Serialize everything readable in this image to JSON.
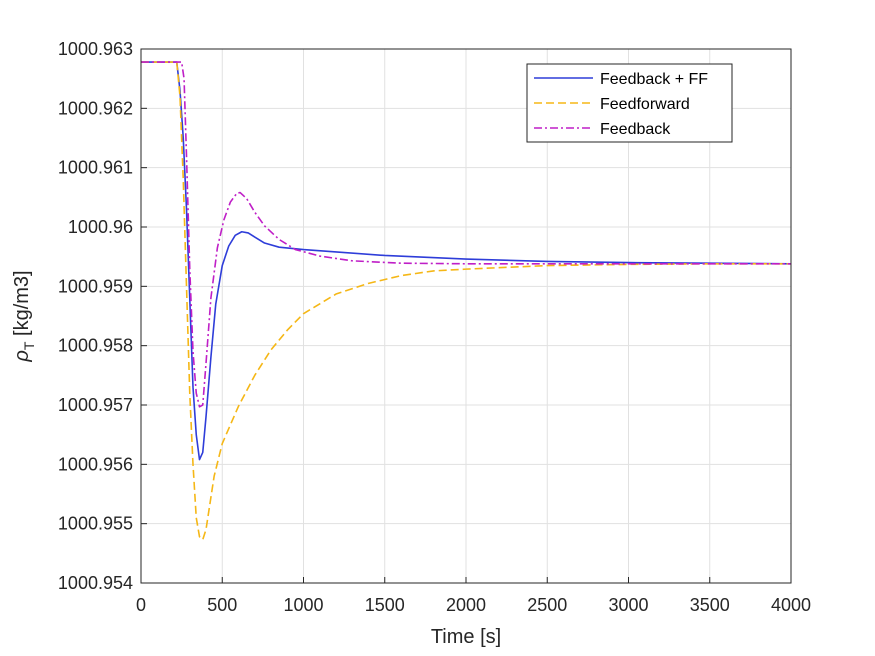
{
  "chart_data": {
    "type": "line",
    "xlabel": "Time [s]",
    "ylabel_main": "ρ",
    "ylabel_sub": "T",
    "ylabel_unit": " [kg/m3]",
    "xlim": [
      0,
      4000
    ],
    "ylim": [
      1000.954,
      1000.963
    ],
    "xticks": [
      0,
      500,
      1000,
      1500,
      2000,
      2500,
      3000,
      3500,
      4000
    ],
    "yticks": [
      1000.954,
      1000.955,
      1000.956,
      1000.957,
      1000.958,
      1000.959,
      1000.96,
      1000.961,
      1000.962,
      1000.963
    ],
    "xtick_labels": [
      "0",
      "500",
      "1000",
      "1500",
      "2000",
      "2500",
      "3000",
      "3500",
      "4000"
    ],
    "ytick_labels": [
      "1000.954",
      "1000.955",
      "1000.956",
      "1000.957",
      "1000.958",
      "1000.959",
      "1000.96",
      "1000.961",
      "1000.962",
      "1000.963"
    ],
    "grid": true,
    "legend_position": "top-right",
    "series": [
      {
        "name": "Feedback + FF",
        "color": "#2E3DD9",
        "style": "solid",
        "points": [
          [
            0,
            1000.96278
          ],
          [
            220,
            1000.96278
          ],
          [
            240,
            1000.9623
          ],
          [
            260,
            1000.9615
          ],
          [
            280,
            1000.9603
          ],
          [
            300,
            1000.9588
          ],
          [
            320,
            1000.9573
          ],
          [
            340,
            1000.9565
          ],
          [
            360,
            1000.95608
          ],
          [
            380,
            1000.9562
          ],
          [
            400,
            1000.9568
          ],
          [
            430,
            1000.9578
          ],
          [
            460,
            1000.9587
          ],
          [
            500,
            1000.95935
          ],
          [
            540,
            1000.95968
          ],
          [
            580,
            1000.95986
          ],
          [
            620,
            1000.95992
          ],
          [
            660,
            1000.9599
          ],
          [
            700,
            1000.95983
          ],
          [
            760,
            1000.95973
          ],
          [
            850,
            1000.95966
          ],
          [
            1000,
            1000.95962
          ],
          [
            1200,
            1000.95958
          ],
          [
            1500,
            1000.95952
          ],
          [
            2000,
            1000.95946
          ],
          [
            2500,
            1000.95942
          ],
          [
            3000,
            1000.9594
          ],
          [
            3500,
            1000.95939
          ],
          [
            4000,
            1000.95938
          ]
        ]
      },
      {
        "name": "Feedforward",
        "color": "#F5B716",
        "style": "dashed",
        "points": [
          [
            0,
            1000.96278
          ],
          [
            220,
            1000.96278
          ],
          [
            240,
            1000.9622
          ],
          [
            260,
            1000.9608
          ],
          [
            280,
            1000.959
          ],
          [
            300,
            1000.9572
          ],
          [
            320,
            1000.956
          ],
          [
            340,
            1000.9551
          ],
          [
            360,
            1000.95478
          ],
          [
            380,
            1000.95473
          ],
          [
            400,
            1000.9549
          ],
          [
            450,
            1000.9558
          ],
          [
            500,
            1000.95635
          ],
          [
            600,
            1000.95698
          ],
          [
            700,
            1000.9575
          ],
          [
            800,
            1000.95793
          ],
          [
            900,
            1000.95826
          ],
          [
            1000,
            1000.95854
          ],
          [
            1200,
            1000.95887
          ],
          [
            1400,
            1000.95905
          ],
          [
            1600,
            1000.95918
          ],
          [
            1800,
            1000.95926
          ],
          [
            2000,
            1000.95929
          ],
          [
            2500,
            1000.95935
          ],
          [
            3000,
            1000.95937
          ],
          [
            3500,
            1000.95938
          ],
          [
            4000,
            1000.95938
          ]
        ]
      },
      {
        "name": "Feedback",
        "color": "#BF1FC7",
        "style": "dashdot",
        "points": [
          [
            0,
            1000.96278
          ],
          [
            250,
            1000.96278
          ],
          [
            265,
            1000.9625
          ],
          [
            280,
            1000.9612
          ],
          [
            300,
            1000.9593
          ],
          [
            320,
            1000.9579
          ],
          [
            340,
            1000.9572
          ],
          [
            360,
            1000.95697
          ],
          [
            380,
            1000.957
          ],
          [
            400,
            1000.9577
          ],
          [
            430,
            1000.9588
          ],
          [
            470,
            1000.95965
          ],
          [
            510,
            1000.96012
          ],
          [
            550,
            1000.96042
          ],
          [
            590,
            1000.96057
          ],
          [
            610,
            1000.96058
          ],
          [
            650,
            1000.96048
          ],
          [
            700,
            1000.96025
          ],
          [
            760,
            1000.96002
          ],
          [
            850,
            1000.95979
          ],
          [
            950,
            1000.95962
          ],
          [
            1100,
            1000.95951
          ],
          [
            1300,
            1000.95943
          ],
          [
            1600,
            1000.95939
          ],
          [
            2000,
            1000.95938
          ],
          [
            2500,
            1000.95938
          ],
          [
            3000,
            1000.95938
          ],
          [
            3500,
            1000.95938
          ],
          [
            4000,
            1000.95938
          ]
        ]
      }
    ]
  }
}
